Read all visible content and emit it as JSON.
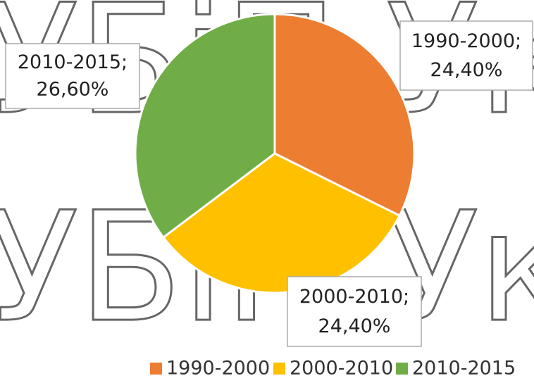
{
  "watermark": [
    "УБіП Укр",
    "УБіП Укра"
  ],
  "chart_data": {
    "type": "pie",
    "categories": [
      "1990-2000",
      "2000-2010",
      "2010-2015"
    ],
    "values": [
      24.4,
      24.4,
      26.6
    ],
    "value_labels": [
      "24,40%",
      "24,40%",
      "26,60%"
    ],
    "colors": [
      "#ed7d31",
      "#ffc000",
      "#70ad47"
    ],
    "legend": "bottom"
  }
}
